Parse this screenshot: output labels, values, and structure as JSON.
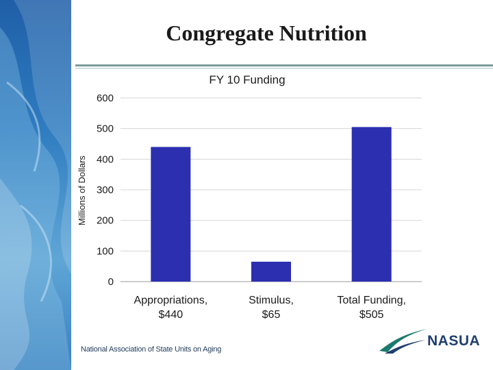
{
  "slide": {
    "title": "Congregate Nutrition",
    "footer_text": "National Association of State Units on Aging",
    "logo_text": "NASUA",
    "colors": {
      "bar": "#2b2fb0",
      "accent_teal": "#1a7a6e",
      "accent_navy": "#1f3f6e",
      "sidebar": "#2f7cc0"
    }
  },
  "chart_data": {
    "type": "bar",
    "title": "FY 10 Funding",
    "ylabel": "Millions of Dollars",
    "xlabel": "",
    "ylim": [
      0,
      600
    ],
    "yticks": [
      "0",
      "100",
      "200",
      "300",
      "400",
      "500",
      "600"
    ],
    "grid": true,
    "categories": [
      {
        "line1": "Appropriations,",
        "line2": "$440"
      },
      {
        "line1": "Stimulus,",
        "line2": "$65"
      },
      {
        "line1": "Total Funding,",
        "line2": "$505"
      }
    ],
    "values": [
      440,
      65,
      505
    ]
  }
}
